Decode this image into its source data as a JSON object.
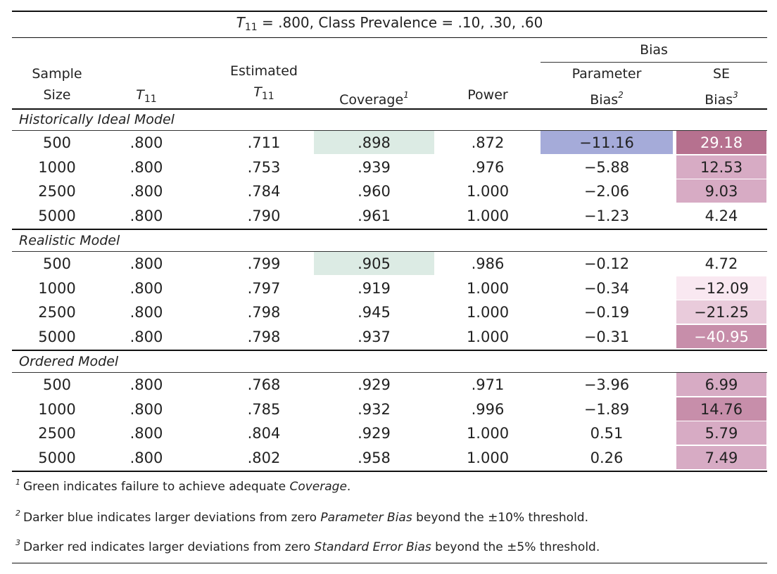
{
  "title": {
    "symbol": "T",
    "subscript": "11",
    "text": " = .800, Class Prevalence = .10, .30, .60"
  },
  "headers": {
    "sample_line1": "Sample",
    "sample_line2": "Size",
    "t11": "T",
    "t11_sub": "11",
    "est_line1": "Estimated",
    "est_line2": "T",
    "est_sub": "11",
    "coverage": "Coverage",
    "coverage_sup": "1",
    "power": "Power",
    "bias_group": "Bias",
    "param_line1": "Parameter",
    "param_line2": "Bias",
    "param_sup": "2",
    "se_line1": "SE",
    "se_line2": "Bias",
    "se_sup": "3"
  },
  "colors": {
    "coverage_fail": "#dcebe4",
    "param_bias_dark": "#a5abd9",
    "se_bias_darkest": "#b6718f",
    "se_bias_dark": "#c78eaa",
    "se_bias_medium": "#d7abc4",
    "se_bias_light": "#e9cbdb",
    "se_bias_lightest": "#f9e8f1"
  },
  "sections": [
    {
      "name": "Historically Ideal Model",
      "rows": [
        {
          "n": "500",
          "t11": ".800",
          "est": ".711",
          "coverage": ".898",
          "power": ".872",
          "param_bias": "−11.16",
          "se_bias": "29.18",
          "cov_color": "#dcebe4",
          "param_color": "#a5abd9",
          "se_color": "#b6718f",
          "se_text_color": "#ffffff"
        },
        {
          "n": "1000",
          "t11": ".800",
          "est": ".753",
          "coverage": ".939",
          "power": ".976",
          "param_bias": "−5.88",
          "se_bias": "12.53",
          "cov_color": "",
          "param_color": "",
          "se_color": "#d7abc4",
          "se_text_color": "#222222"
        },
        {
          "n": "2500",
          "t11": ".800",
          "est": ".784",
          "coverage": ".960",
          "power": "1.000",
          "param_bias": "−2.06",
          "se_bias": "9.03",
          "cov_color": "",
          "param_color": "",
          "se_color": "#d7abc4",
          "se_text_color": "#222222"
        },
        {
          "n": "5000",
          "t11": ".800",
          "est": ".790",
          "coverage": ".961",
          "power": "1.000",
          "param_bias": "−1.23",
          "se_bias": "4.24",
          "cov_color": "",
          "param_color": "",
          "se_color": "",
          "se_text_color": "#222222"
        }
      ]
    },
    {
      "name": "Realistic Model",
      "rows": [
        {
          "n": "500",
          "t11": ".800",
          "est": ".799",
          "coverage": ".905",
          "power": ".986",
          "param_bias": "−0.12",
          "se_bias": "4.72",
          "cov_color": "#dcebe4",
          "param_color": "",
          "se_color": "",
          "se_text_color": "#222222"
        },
        {
          "n": "1000",
          "t11": ".800",
          "est": ".797",
          "coverage": ".919",
          "power": "1.000",
          "param_bias": "−0.34",
          "se_bias": "−12.09",
          "cov_color": "",
          "param_color": "",
          "se_color": "#f9e8f1",
          "se_text_color": "#222222"
        },
        {
          "n": "2500",
          "t11": ".800",
          "est": ".798",
          "coverage": ".945",
          "power": "1.000",
          "param_bias": "−0.19",
          "se_bias": "−21.25",
          "cov_color": "",
          "param_color": "",
          "se_color": "#e9cbdb",
          "se_text_color": "#222222"
        },
        {
          "n": "5000",
          "t11": ".800",
          "est": ".798",
          "coverage": ".937",
          "power": "1.000",
          "param_bias": "−0.31",
          "se_bias": "−40.95",
          "cov_color": "",
          "param_color": "",
          "se_color": "#c78eaa",
          "se_text_color": "#ffffff"
        }
      ]
    },
    {
      "name": "Ordered Model",
      "rows": [
        {
          "n": "500",
          "t11": ".800",
          "est": ".768",
          "coverage": ".929",
          "power": ".971",
          "param_bias": "−3.96",
          "se_bias": "6.99",
          "cov_color": "",
          "param_color": "",
          "se_color": "#d7abc4",
          "se_text_color": "#222222"
        },
        {
          "n": "1000",
          "t11": ".800",
          "est": ".785",
          "coverage": ".932",
          "power": ".996",
          "param_bias": "−1.89",
          "se_bias": "14.76",
          "cov_color": "",
          "param_color": "",
          "se_color": "#c78eaa",
          "se_text_color": "#222222"
        },
        {
          "n": "2500",
          "t11": ".800",
          "est": ".804",
          "coverage": ".929",
          "power": "1.000",
          "param_bias": "0.51",
          "se_bias": "5.79",
          "cov_color": "",
          "param_color": "",
          "se_color": "#d7abc4",
          "se_text_color": "#222222"
        },
        {
          "n": "5000",
          "t11": ".800",
          "est": ".802",
          "coverage": ".958",
          "power": "1.000",
          "param_bias": "0.26",
          "se_bias": "7.49",
          "cov_color": "",
          "param_color": "",
          "se_color": "#d7abc4",
          "se_text_color": "#222222"
        }
      ]
    }
  ],
  "footnotes": [
    {
      "mark": "1",
      "before": "Green indicates failure to achieve adequate ",
      "em": "Coverage",
      "after": "."
    },
    {
      "mark": "2",
      "before": "Darker blue indicates larger deviations from zero ",
      "em": "Parameter Bias",
      "after": " beyond the ±10% threshold."
    },
    {
      "mark": "3",
      "before": "Darker red indicates larger deviations from zero ",
      "em": "Standard Error Bias",
      "after": " beyond the ±5% threshold."
    }
  ]
}
